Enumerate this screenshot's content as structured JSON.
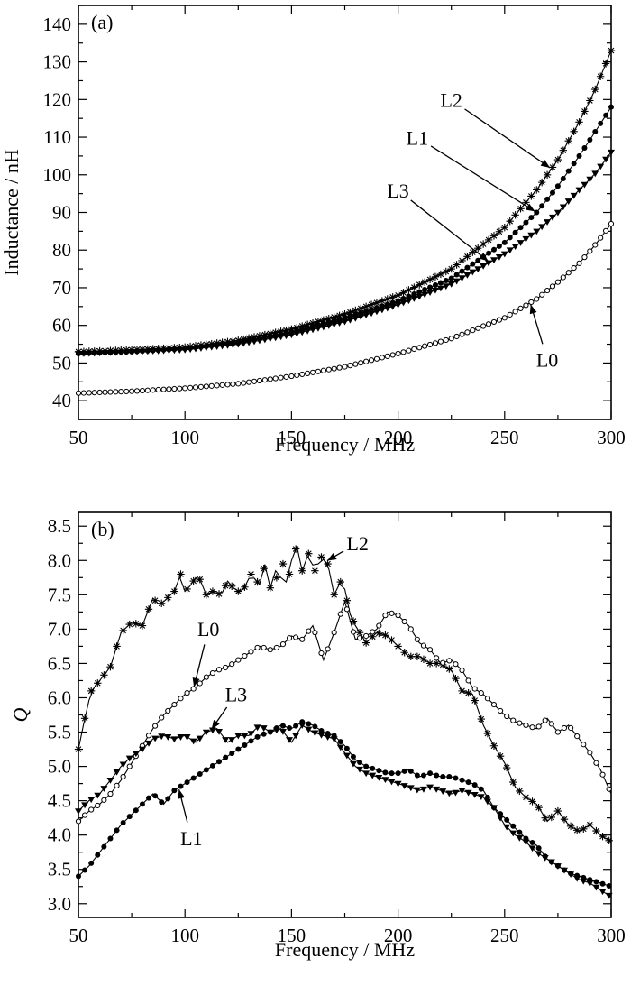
{
  "chart_data": [
    {
      "type": "line",
      "panel_label": "(a)",
      "xlabel": "Frequency / MHz",
      "ylabel": "Inductance / nH",
      "xlim": [
        50,
        300
      ],
      "ylim": [
        35,
        145
      ],
      "xticks": [
        50,
        100,
        150,
        200,
        250,
        300
      ],
      "yticks": [
        40,
        50,
        60,
        70,
        80,
        90,
        100,
        110,
        120,
        130,
        140
      ],
      "grid": false,
      "series": [
        {
          "name": "L2",
          "marker": "star",
          "x": [
            50,
            75,
            100,
            125,
            150,
            175,
            200,
            225,
            250,
            265,
            275,
            285,
            292,
            300
          ],
          "y": [
            53,
            53.5,
            54.2,
            56,
            59,
            63,
            68,
            75,
            86,
            96,
            104,
            114,
            122,
            133
          ]
        },
        {
          "name": "L1",
          "marker": "dot",
          "x": [
            50,
            75,
            100,
            125,
            150,
            175,
            200,
            225,
            250,
            265,
            275,
            285,
            292,
            300
          ],
          "y": [
            52.5,
            53,
            53.8,
            55.5,
            58.3,
            62,
            66.5,
            72.5,
            82,
            90,
            97,
            105,
            111,
            118
          ]
        },
        {
          "name": "L3",
          "marker": "triangle-down",
          "x": [
            50,
            75,
            100,
            125,
            150,
            175,
            200,
            225,
            250,
            265,
            275,
            285,
            292,
            300
          ],
          "y": [
            52.5,
            53,
            53.5,
            55,
            57.5,
            61,
            65.5,
            71,
            79,
            85,
            90,
            96,
            100,
            106
          ]
        },
        {
          "name": "L0",
          "marker": "circle-open",
          "x": [
            50,
            75,
            100,
            125,
            150,
            175,
            200,
            225,
            250,
            265,
            275,
            285,
            292,
            300
          ],
          "y": [
            42,
            42.5,
            43.3,
            44.5,
            46.5,
            49,
            52.5,
            56.5,
            62,
            67,
            71.5,
            76.5,
            81,
            87
          ]
        }
      ],
      "annotations": [
        {
          "text": "L2",
          "series": "L2",
          "x": 272,
          "label_pos": [
            225,
            118
          ]
        },
        {
          "text": "L1",
          "series": "L1",
          "x": 265,
          "label_pos": [
            209,
            108
          ]
        },
        {
          "text": "L3",
          "series": "L3",
          "x": 243,
          "label_pos": [
            200,
            94
          ]
        },
        {
          "text": "L0",
          "series": "L0",
          "x": 262,
          "label_pos": [
            270,
            49
          ]
        }
      ]
    },
    {
      "type": "line",
      "panel_label": "(b)",
      "xlabel": "Frequency / MHz",
      "ylabel": "Q",
      "xlim": [
        50,
        300
      ],
      "ylim": [
        2.8,
        8.7
      ],
      "xticks": [
        50,
        100,
        150,
        200,
        250,
        300
      ],
      "yticks": [
        3.0,
        3.5,
        4.0,
        4.5,
        5.0,
        5.5,
        6.0,
        6.5,
        7.0,
        7.5,
        8.0,
        8.5
      ],
      "grid": false,
      "series": [
        {
          "name": "L2",
          "marker": "star",
          "x": [
            50,
            53,
            56,
            60,
            65,
            70,
            75,
            80,
            85,
            88,
            90,
            95,
            98,
            100,
            103,
            106,
            110,
            113,
            117,
            120,
            124,
            127,
            131,
            135,
            138,
            140,
            142,
            144,
            146,
            148,
            150,
            153,
            155,
            158,
            161,
            164,
            167,
            170,
            174,
            177,
            180,
            185,
            190,
            195,
            200,
            205,
            210,
            215,
            220,
            225,
            230,
            235,
            240,
            245,
            250,
            255,
            260,
            265,
            270,
            275,
            280,
            285,
            290,
            295,
            300
          ],
          "y": [
            5.25,
            5.7,
            6.1,
            6.25,
            6.45,
            6.95,
            7.1,
            7.05,
            7.45,
            7.35,
            7.4,
            7.55,
            7.8,
            7.55,
            7.65,
            7.8,
            7.5,
            7.55,
            7.5,
            7.7,
            7.55,
            7.55,
            7.8,
            7.65,
            8.0,
            7.6,
            7.95,
            7.55,
            7.95,
            7.6,
            8.0,
            8.25,
            7.85,
            8.1,
            7.85,
            8.05,
            7.95,
            7.5,
            7.75,
            7.25,
            7.05,
            6.8,
            6.95,
            6.9,
            6.75,
            6.6,
            6.6,
            6.5,
            6.5,
            6.4,
            6.1,
            6.05,
            5.6,
            5.3,
            5.05,
            4.7,
            4.55,
            4.45,
            4.2,
            4.35,
            4.15,
            4.05,
            4.15,
            4.0,
            3.9
          ]
        },
        {
          "name": "L0",
          "marker": "circle-open",
          "x": [
            50,
            55,
            60,
            65,
            70,
            75,
            80,
            85,
            90,
            95,
            100,
            105,
            110,
            115,
            120,
            125,
            130,
            135,
            140,
            145,
            150,
            155,
            160,
            165,
            170,
            175,
            180,
            185,
            190,
            195,
            200,
            205,
            210,
            215,
            220,
            225,
            230,
            235,
            240,
            245,
            250,
            255,
            260,
            265,
            270,
            275,
            280,
            285,
            290,
            295,
            300
          ],
          "y": [
            4.2,
            4.35,
            4.45,
            4.6,
            4.8,
            5.05,
            5.3,
            5.55,
            5.75,
            5.9,
            6.05,
            6.15,
            6.3,
            6.4,
            6.45,
            6.55,
            6.65,
            6.75,
            6.7,
            6.75,
            6.9,
            6.85,
            7.05,
            6.55,
            6.95,
            7.4,
            6.85,
            6.9,
            7.0,
            7.25,
            7.2,
            7.05,
            6.8,
            6.7,
            6.5,
            6.55,
            6.4,
            6.15,
            6.05,
            5.9,
            5.75,
            5.65,
            5.6,
            5.55,
            5.7,
            5.5,
            5.6,
            5.4,
            5.2,
            4.95,
            4.6
          ]
        },
        {
          "name": "L3",
          "marker": "triangle-down",
          "x": [
            50,
            55,
            60,
            65,
            70,
            75,
            80,
            85,
            90,
            95,
            100,
            105,
            110,
            115,
            120,
            125,
            130,
            135,
            140,
            145,
            150,
            155,
            160,
            165,
            170,
            175,
            180,
            185,
            190,
            195,
            200,
            205,
            210,
            215,
            220,
            225,
            230,
            235,
            240,
            245,
            250,
            255,
            260,
            265,
            270,
            275,
            280,
            285,
            290,
            295,
            300
          ],
          "y": [
            4.35,
            4.5,
            4.6,
            4.8,
            5.0,
            5.15,
            5.25,
            5.4,
            5.45,
            5.4,
            5.45,
            5.35,
            5.5,
            5.55,
            5.35,
            5.45,
            5.45,
            5.6,
            5.5,
            5.55,
            5.35,
            5.6,
            5.5,
            5.45,
            5.4,
            5.2,
            5.0,
            4.9,
            4.85,
            4.8,
            4.75,
            4.7,
            4.65,
            4.7,
            4.65,
            4.6,
            4.65,
            4.6,
            4.55,
            4.4,
            4.15,
            4.0,
            3.9,
            3.75,
            3.65,
            3.55,
            3.45,
            3.35,
            3.3,
            3.2,
            3.1
          ]
        },
        {
          "name": "L1",
          "marker": "dot",
          "x": [
            50,
            55,
            60,
            65,
            70,
            75,
            80,
            85,
            90,
            95,
            100,
            105,
            110,
            115,
            120,
            125,
            130,
            135,
            140,
            145,
            150,
            155,
            160,
            165,
            170,
            175,
            180,
            185,
            190,
            195,
            200,
            205,
            210,
            215,
            220,
            225,
            230,
            235,
            240,
            245,
            250,
            255,
            260,
            265,
            270,
            275,
            280,
            285,
            290,
            295,
            300
          ],
          "y": [
            3.4,
            3.55,
            3.75,
            3.95,
            4.15,
            4.3,
            4.45,
            4.6,
            4.45,
            4.65,
            4.75,
            4.85,
            4.95,
            5.05,
            5.15,
            5.25,
            5.35,
            5.45,
            5.5,
            5.6,
            5.55,
            5.65,
            5.6,
            5.5,
            5.45,
            5.3,
            5.1,
            5.0,
            4.95,
            4.9,
            4.9,
            4.95,
            4.85,
            4.9,
            4.85,
            4.85,
            4.8,
            4.75,
            4.65,
            4.4,
            4.25,
            4.1,
            3.95,
            3.85,
            3.65,
            3.55,
            3.45,
            3.4,
            3.35,
            3.3,
            3.25
          ]
        }
      ],
      "annotations": [
        {
          "text": "L2",
          "series": "L2",
          "x": 166,
          "label_pos": [
            181,
            8.15
          ]
        },
        {
          "text": "L0",
          "series": "L0",
          "x": 104,
          "label_pos": [
            111,
            6.9
          ]
        },
        {
          "text": "L3",
          "series": "L3",
          "x": 112,
          "label_pos": [
            124,
            5.95
          ]
        },
        {
          "text": "L1",
          "series": "L1",
          "x": 97,
          "label_pos": [
            103,
            3.85
          ]
        }
      ]
    }
  ]
}
